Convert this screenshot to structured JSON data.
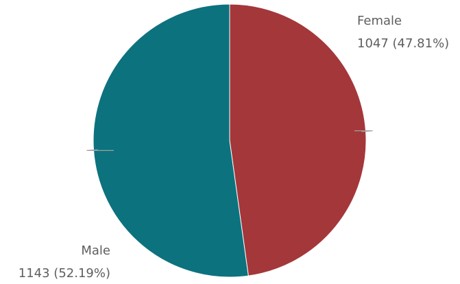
{
  "chart_data": {
    "type": "pie",
    "categories": [
      "Female",
      "Male"
    ],
    "values": [
      1047,
      1143
    ],
    "percent_labels": [
      "47.81%",
      "52.19%"
    ],
    "value_labels": [
      "1047 (47.81%)",
      "1143 (52.19%)"
    ],
    "colors": [
      "#a4373a",
      "#0c727e"
    ],
    "start_angle_deg": 0,
    "direction": "clockwise",
    "legend": "none"
  }
}
